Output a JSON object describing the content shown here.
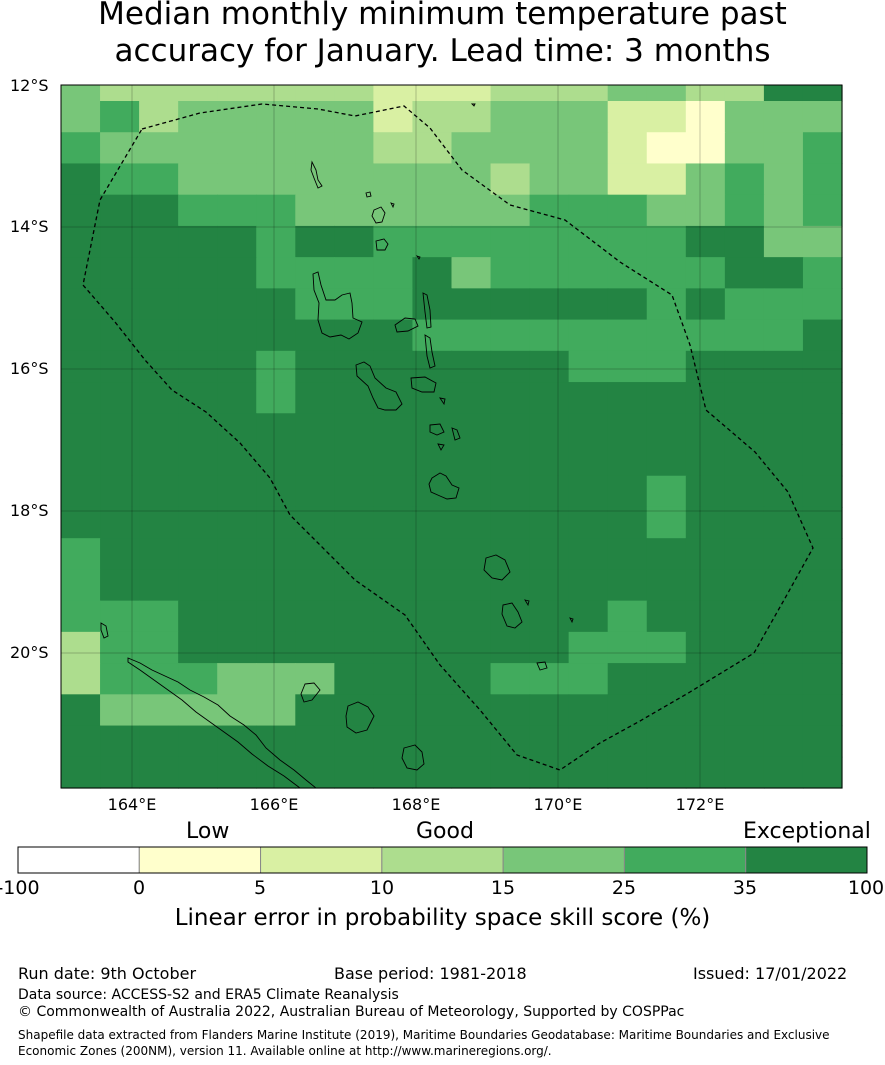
{
  "title": {
    "line1": "Median monthly minimum temperature past",
    "line2": "accuracy for January. Lead time: 3 months"
  },
  "map": {
    "lat_labels": [
      "12°S",
      "14°S",
      "16°S",
      "18°S",
      "20°S"
    ],
    "lon_labels": [
      "164°E",
      "166°E",
      "168°E",
      "170°E",
      "172°E"
    ],
    "grid": [
      "43333333222333443366",
      "45344444233444221444",
      "54444444334444211445",
      "65544444444344224545",
      "66655544444455544545",
      "66666566555555556644",
      "66666555564555555665",
      "66666655566666656555",
      "66666666655555555556",
      "66666566666665556666",
      "66666566666666666666",
      "66666666666666666666",
      "66666666666666666666",
      "66666666666666656666",
      "66666666666666656666",
      "56666666666666666666",
      "56666666666666666666",
      "55566666666666566666",
      "35566666666665556666",
      "35554446666555666666",
      "64444466666666666666",
      "66666666666666666666",
      "66666666666666666666"
    ]
  },
  "colorbar": {
    "categories": [
      "Low",
      "Good",
      "Exceptional"
    ],
    "ticks": [
      "-100",
      "0",
      "5",
      "10",
      "15",
      "25",
      "35",
      "100"
    ],
    "colors": [
      "#ffffff",
      "#ffffcc",
      "#d9f0a3",
      "#addd8e",
      "#78c679",
      "#41ab5d",
      "#238443"
    ],
    "label": "Linear error in probability space skill score (%)"
  },
  "footer": {
    "run_date": "Run date: 9th October",
    "base_period": "Base period: 1981-2018",
    "issued": "Issued: 17/01/2022",
    "data_source": "Data source: ACCESS-S2 and ERA5 Climate Reanalysis",
    "copyright": "© Commonwealth of Australia 2022, Australian Bureau of Meteorology, Supported by COSPPac",
    "shapefile_line1": "Shapefile data extracted from Flanders Marine Institute (2019), Maritime Boundaries Geodatabase: Maritime Boundaries and Exclusive",
    "shapefile_line2": "Economic Zones (200NM), version 11. Available online at http://www.marineregions.org/."
  }
}
